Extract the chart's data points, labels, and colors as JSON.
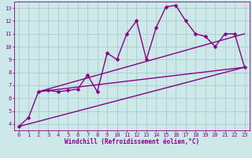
{
  "background_color": "#cce8e8",
  "grid_color": "#aacccc",
  "line_color": "#880088",
  "xlim": [
    -0.5,
    23.5
  ],
  "ylim": [
    3.5,
    13.5
  ],
  "xticks": [
    0,
    1,
    2,
    3,
    4,
    5,
    6,
    7,
    8,
    9,
    10,
    11,
    12,
    13,
    14,
    15,
    16,
    17,
    18,
    19,
    20,
    21,
    22,
    23
  ],
  "yticks": [
    4,
    5,
    6,
    7,
    8,
    9,
    10,
    11,
    12,
    13
  ],
  "xlabel": "Windchill (Refroidissement éolien,°C)",
  "series": [
    {
      "x": [
        0,
        1,
        2,
        3,
        4,
        5,
        6,
        7,
        8,
        9,
        10,
        11,
        12,
        13,
        14,
        15,
        16,
        17,
        18,
        19,
        20,
        21,
        22,
        23
      ],
      "y": [
        3.8,
        4.5,
        6.5,
        6.6,
        6.5,
        6.6,
        6.7,
        7.8,
        6.5,
        9.5,
        9.0,
        11.0,
        12.0,
        9.0,
        11.5,
        13.1,
        13.2,
        12.0,
        11.0,
        10.8,
        10.0,
        11.0,
        11.0,
        8.4
      ],
      "marker": "D",
      "markersize": 2.5,
      "linewidth": 1.0,
      "has_marker": true
    },
    {
      "x": [
        0,
        23
      ],
      "y": [
        3.8,
        8.4
      ],
      "marker": null,
      "markersize": 0,
      "linewidth": 1.0,
      "has_marker": false
    },
    {
      "x": [
        2,
        23
      ],
      "y": [
        6.5,
        8.4
      ],
      "marker": null,
      "markersize": 0,
      "linewidth": 1.0,
      "has_marker": false
    },
    {
      "x": [
        2,
        23
      ],
      "y": [
        6.5,
        11.0
      ],
      "marker": null,
      "markersize": 0,
      "linewidth": 1.0,
      "has_marker": false
    }
  ],
  "tick_fontsize": 5.0,
  "xlabel_fontsize": 5.5
}
